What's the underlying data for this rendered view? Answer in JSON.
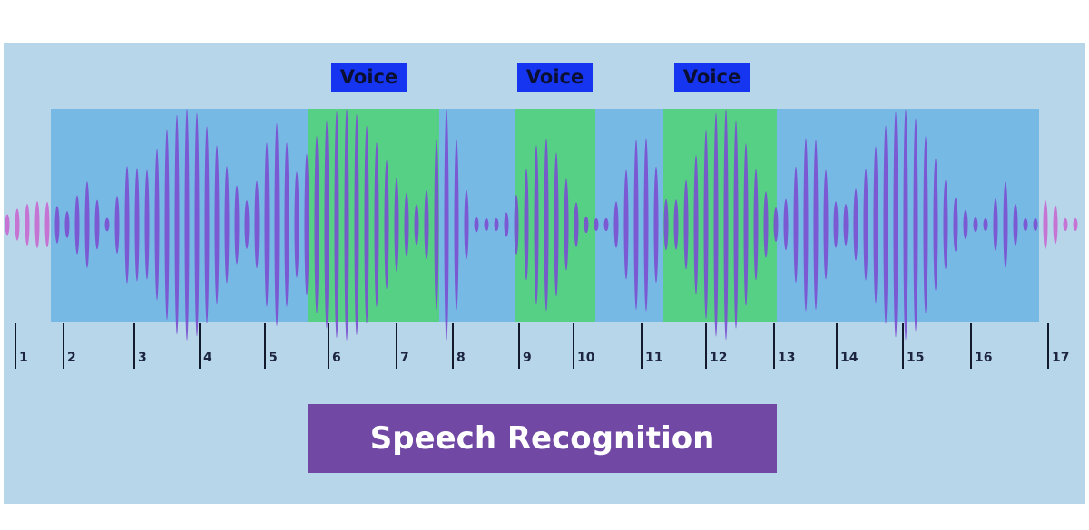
{
  "diagram": {
    "voice_labels": [
      "Voice",
      "Voice",
      "Voice"
    ],
    "tick_labels": [
      "1",
      "2",
      "3",
      "4",
      "5",
      "6",
      "7",
      "8",
      "9",
      "10",
      "11",
      "12",
      "13",
      "14",
      "15",
      "16",
      "17"
    ],
    "caption": "Speech Recognition",
    "colors": {
      "panel": "#b7d6ea",
      "segment_region": "#6cb4e4",
      "voice_region": "#52d37a",
      "waveform": "#7a4fcf",
      "waveform_edge": "#c769d0",
      "voice_label_bg": "#1535f0",
      "caption_bg": "#7148a3"
    }
  }
}
